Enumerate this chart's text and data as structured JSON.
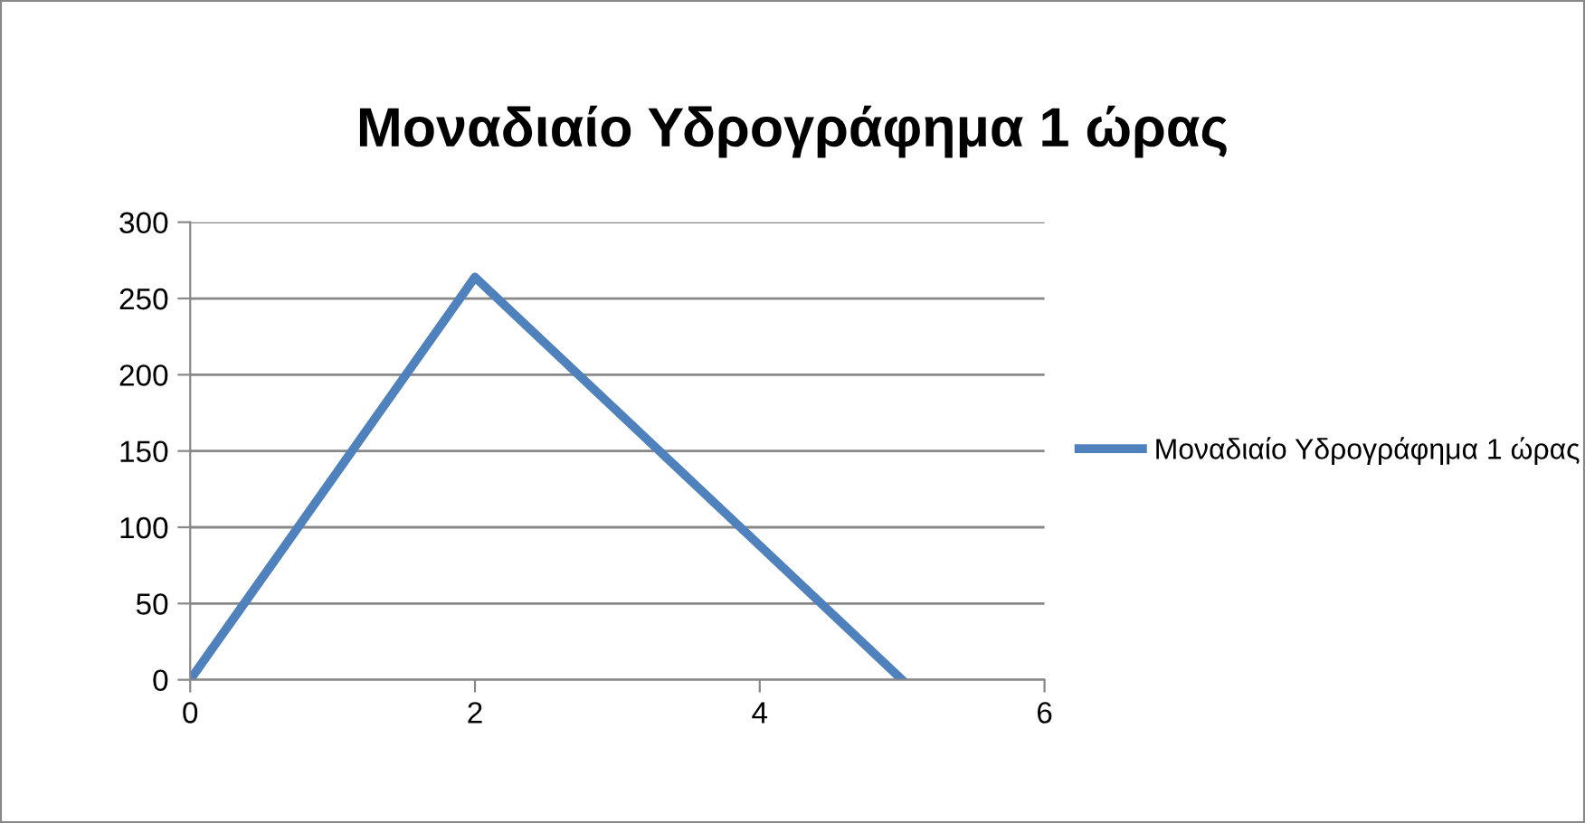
{
  "chart_data": {
    "type": "line",
    "title": "Μοναδιαίο Υδρογράφημα 1 ώρας",
    "x": [
      0,
      2,
      5
    ],
    "series": [
      {
        "name": "Μοναδιαίο Υδρογράφημα 1 ώρας",
        "color": "#4f81bd",
        "values": [
          0,
          264,
          0
        ]
      }
    ],
    "xlim": [
      0,
      6
    ],
    "xticks": [
      0,
      2,
      4,
      6
    ],
    "ylim": [
      0,
      300
    ],
    "yticks": [
      0,
      50,
      100,
      150,
      200,
      250,
      300
    ],
    "grid": "y",
    "legend": "right",
    "marker": "none",
    "line_style": "solid"
  }
}
